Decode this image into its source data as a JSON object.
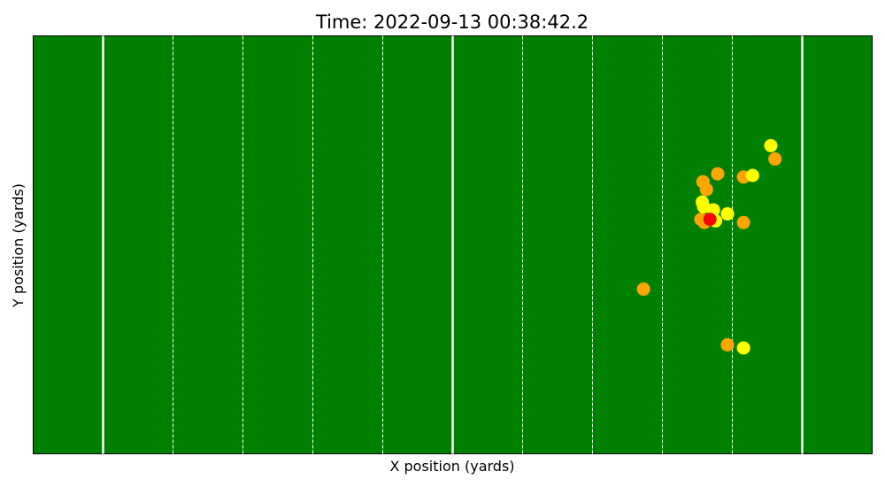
{
  "chart_data": {
    "type": "scatter",
    "title": "Time: 2022-09-13 00:38:42.2",
    "xlabel": "X position (yards)",
    "ylabel": "Y position (yards)",
    "xlim": [
      0,
      120
    ],
    "ylim": [
      0,
      53.3
    ],
    "field_color": "#008000",
    "line_color": "#ffffff",
    "solid_lines_x": [
      10,
      60,
      110
    ],
    "dashed_lines_x": [
      20,
      30,
      40,
      50,
      70,
      80,
      90,
      100
    ],
    "series": [
      {
        "color": "#ffa500",
        "points": [
          {
            "x": 97.9,
            "y": 35.7
          },
          {
            "x": 96.3,
            "y": 33.7
          },
          {
            "x": 95.8,
            "y": 34.7
          },
          {
            "x": 101.6,
            "y": 35.3
          },
          {
            "x": 106.1,
            "y": 37.6
          },
          {
            "x": 95.5,
            "y": 29.9
          },
          {
            "x": 96.0,
            "y": 29.5
          },
          {
            "x": 101.6,
            "y": 29.5
          },
          {
            "x": 87.3,
            "y": 21.0
          },
          {
            "x": 99.3,
            "y": 13.9
          }
        ]
      },
      {
        "color": "#ffff00",
        "points": [
          {
            "x": 105.5,
            "y": 39.3
          },
          {
            "x": 102.9,
            "y": 35.5
          },
          {
            "x": 95.7,
            "y": 32.1
          },
          {
            "x": 95.9,
            "y": 31.5
          },
          {
            "x": 97.3,
            "y": 31.1
          },
          {
            "x": 99.3,
            "y": 30.6
          },
          {
            "x": 97.6,
            "y": 29.7
          },
          {
            "x": 101.6,
            "y": 13.5
          }
        ]
      },
      {
        "color": "#ff0000",
        "points": [
          {
            "x": 96.8,
            "y": 29.9
          }
        ]
      }
    ]
  }
}
